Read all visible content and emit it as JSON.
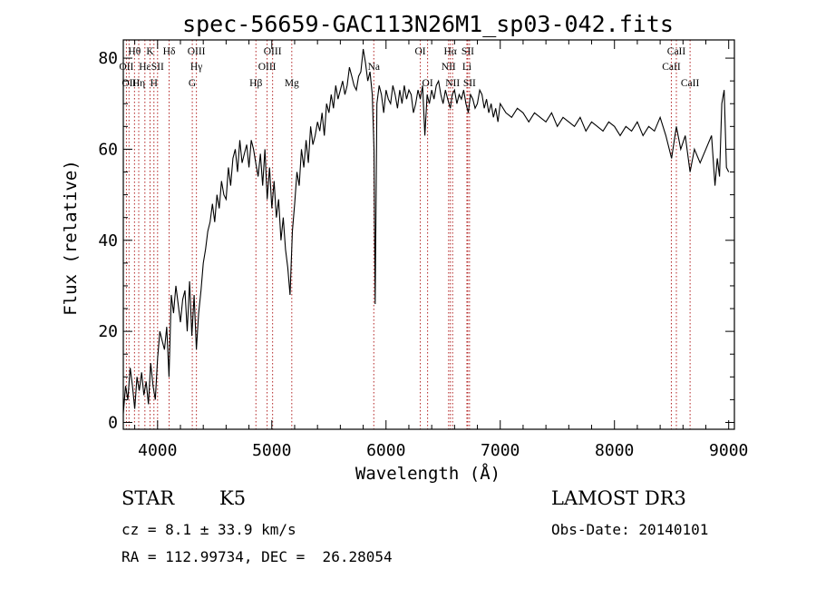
{
  "chart_data": {
    "type": "line",
    "title": "spec-56659-GAC113N26M1_sp03-042.fits",
    "xlabel": "Wavelength (Å)",
    "ylabel": "Flux (relative)",
    "xlim": [
      3700,
      9050
    ],
    "ylim": [
      -1.5,
      84
    ],
    "x_ticks": [
      4000,
      5000,
      6000,
      7000,
      8000,
      9000
    ],
    "y_ticks": [
      0,
      20,
      40,
      60,
      80
    ],
    "grid": false,
    "series": [
      {
        "x": [
          3700,
          3720,
          3740,
          3760,
          3780,
          3800,
          3820,
          3840,
          3860,
          3880,
          3900,
          3920,
          3940,
          3960,
          3980,
          4000,
          4020,
          4040,
          4060,
          4080,
          4100,
          4120,
          4140,
          4160,
          4180,
          4200,
          4220,
          4240,
          4260,
          4280,
          4300,
          4320,
          4340,
          4360,
          4380,
          4400,
          4420,
          4440,
          4460,
          4480,
          4500,
          4520,
          4540,
          4560,
          4580,
          4600,
          4620,
          4640,
          4660,
          4680,
          4700,
          4720,
          4740,
          4760,
          4780,
          4800,
          4820,
          4840,
          4860,
          4880,
          4900,
          4920,
          4940,
          4960,
          4980,
          5000,
          5020,
          5040,
          5060,
          5080,
          5100,
          5120,
          5140,
          5160,
          5180,
          5200,
          5220,
          5240,
          5260,
          5280,
          5300,
          5320,
          5340,
          5360,
          5380,
          5400,
          5420,
          5440,
          5460,
          5480,
          5500,
          5520,
          5540,
          5560,
          5580,
          5600,
          5620,
          5640,
          5660,
          5680,
          5700,
          5720,
          5740,
          5760,
          5780,
          5800,
          5820,
          5840,
          5860,
          5880,
          5895,
          5905,
          5920,
          5940,
          5960,
          5980,
          6000,
          6020,
          6040,
          6060,
          6080,
          6100,
          6120,
          6140,
          6160,
          6180,
          6200,
          6220,
          6240,
          6260,
          6280,
          6300,
          6320,
          6340,
          6360,
          6380,
          6400,
          6420,
          6440,
          6460,
          6480,
          6500,
          6520,
          6540,
          6563,
          6580,
          6600,
          6620,
          6640,
          6660,
          6680,
          6700,
          6720,
          6740,
          6760,
          6780,
          6800,
          6820,
          6840,
          6860,
          6880,
          6900,
          6920,
          6940,
          6960,
          6980,
          7000,
          7050,
          7100,
          7150,
          7200,
          7250,
          7300,
          7350,
          7400,
          7450,
          7500,
          7550,
          7600,
          7650,
          7700,
          7750,
          7800,
          7850,
          7900,
          7950,
          8000,
          8050,
          8100,
          8150,
          8200,
          8250,
          8300,
          8350,
          8400,
          8450,
          8500,
          8542,
          8580,
          8620,
          8662,
          8700,
          8750,
          8800,
          8850,
          8880,
          8900,
          8920,
          8940,
          8960,
          8980,
          9000
        ],
        "y": [
          2,
          8,
          5,
          12,
          8,
          3,
          10,
          7,
          11,
          6,
          9,
          4,
          13,
          8,
          5,
          14,
          20,
          18,
          16,
          21,
          10,
          28,
          24,
          30,
          26,
          22,
          27,
          29,
          20,
          31,
          19,
          28,
          16,
          24,
          29,
          35,
          38,
          42,
          44,
          48,
          44,
          50,
          47,
          53,
          50,
          49,
          56,
          52,
          58,
          60,
          55,
          62,
          57,
          59,
          61,
          56,
          62,
          60,
          57,
          54,
          59,
          52,
          60,
          49,
          56,
          47,
          53,
          45,
          49,
          40,
          45,
          38,
          34,
          28,
          42,
          48,
          55,
          52,
          60,
          56,
          62,
          57,
          65,
          61,
          63,
          66,
          64,
          68,
          63,
          70,
          68,
          72,
          69,
          74,
          71,
          73,
          75,
          72,
          74,
          78,
          76,
          74,
          73,
          76,
          77,
          82,
          79,
          75,
          77,
          72,
          60,
          26,
          70,
          74,
          72,
          68,
          73,
          71,
          70,
          74,
          72,
          69,
          73,
          70,
          74,
          71,
          73,
          72,
          68,
          70,
          73,
          71,
          74,
          63,
          72,
          70,
          73,
          71,
          74,
          75,
          72,
          70,
          73,
          71,
          69,
          72,
          73,
          70,
          72,
          71,
          73,
          70,
          68,
          72,
          71,
          69,
          70,
          73,
          72,
          69,
          71,
          68,
          70,
          67,
          69,
          66,
          70,
          68,
          67,
          69,
          68,
          66,
          68,
          67,
          66,
          68,
          65,
          67,
          66,
          65,
          67,
          64,
          66,
          65,
          64,
          66,
          65,
          63,
          65,
          64,
          66,
          63,
          65,
          64,
          67,
          63,
          58,
          65,
          60,
          63,
          55,
          60,
          57,
          60,
          63,
          52,
          58,
          54,
          70,
          73,
          56,
          55
        ]
      }
    ],
    "annotations": [
      {
        "wavelength": 3727,
        "labels": [
          "OII"
        ],
        "rows": [
          2
        ]
      },
      {
        "wavelength": 3750,
        "labels": [
          "OII"
        ],
        "rows": [
          3
        ]
      },
      {
        "wavelength": 3798,
        "labels": [
          "Hθ"
        ],
        "rows": [
          1
        ]
      },
      {
        "wavelength": 3835,
        "labels": [
          "Hη"
        ],
        "rows": [
          3
        ]
      },
      {
        "wavelength": 3889,
        "labels": [
          "Hε"
        ],
        "rows": [
          2
        ]
      },
      {
        "wavelength": 3934,
        "labels": [
          "K"
        ],
        "rows": [
          1
        ]
      },
      {
        "wavelength": 3968,
        "labels": [
          "H"
        ],
        "rows": [
          3
        ]
      },
      {
        "wavelength": 4000,
        "labels": [
          "SII"
        ],
        "rows": [
          2
        ]
      },
      {
        "wavelength": 4101,
        "labels": [
          "Hδ"
        ],
        "rows": [
          1
        ]
      },
      {
        "wavelength": 4304,
        "labels": [
          "G"
        ],
        "rows": [
          3
        ]
      },
      {
        "wavelength": 4340,
        "labels": [
          "OIII",
          "Hγ"
        ],
        "rows": [
          1,
          2
        ]
      },
      {
        "wavelength": 4861,
        "labels": [
          "Hβ"
        ],
        "rows": [
          3
        ]
      },
      {
        "wavelength": 4959,
        "labels": [
          "OIII"
        ],
        "rows": [
          2
        ]
      },
      {
        "wavelength": 5007,
        "labels": [
          "OIII"
        ],
        "rows": [
          1
        ]
      },
      {
        "wavelength": 5175,
        "labels": [
          "Mg"
        ],
        "rows": [
          3
        ]
      },
      {
        "wavelength": 5893,
        "labels": [
          "Na"
        ],
        "rows": [
          2
        ]
      },
      {
        "wavelength": 6300,
        "labels": [
          "OI"
        ],
        "rows": [
          1
        ]
      },
      {
        "wavelength": 6364,
        "labels": [
          "OI"
        ],
        "rows": [
          3
        ]
      },
      {
        "wavelength": 6548,
        "labels": [
          "NII"
        ],
        "rows": [
          2
        ]
      },
      {
        "wavelength": 6563,
        "labels": [
          "Hα"
        ],
        "rows": [
          1
        ]
      },
      {
        "wavelength": 6583,
        "labels": [
          "NII"
        ],
        "rows": [
          3
        ]
      },
      {
        "wavelength": 6708,
        "labels": [
          "Li"
        ],
        "rows": [
          2
        ]
      },
      {
        "wavelength": 6716,
        "labels": [
          "SII"
        ],
        "rows": [
          1
        ]
      },
      {
        "wavelength": 6731,
        "labels": [
          "SII"
        ],
        "rows": [
          3
        ]
      },
      {
        "wavelength": 8498,
        "labels": [
          "CaII"
        ],
        "rows": [
          2
        ]
      },
      {
        "wavelength": 8542,
        "labels": [
          "CaII"
        ],
        "rows": [
          1
        ]
      },
      {
        "wavelength": 8662,
        "labels": [
          "CaII"
        ],
        "rows": [
          3
        ]
      }
    ]
  },
  "footer": {
    "class": "STAR",
    "subclass": "K5",
    "survey": "LAMOST DR3",
    "cz": "cz = 8.1 ± 33.9 km/s",
    "obs_date": "Obs-Date: 20140101",
    "radec": "RA = 112.99734, DEC =  26.28054"
  },
  "colors": {
    "line": "#000000",
    "marker": "#b22222"
  }
}
